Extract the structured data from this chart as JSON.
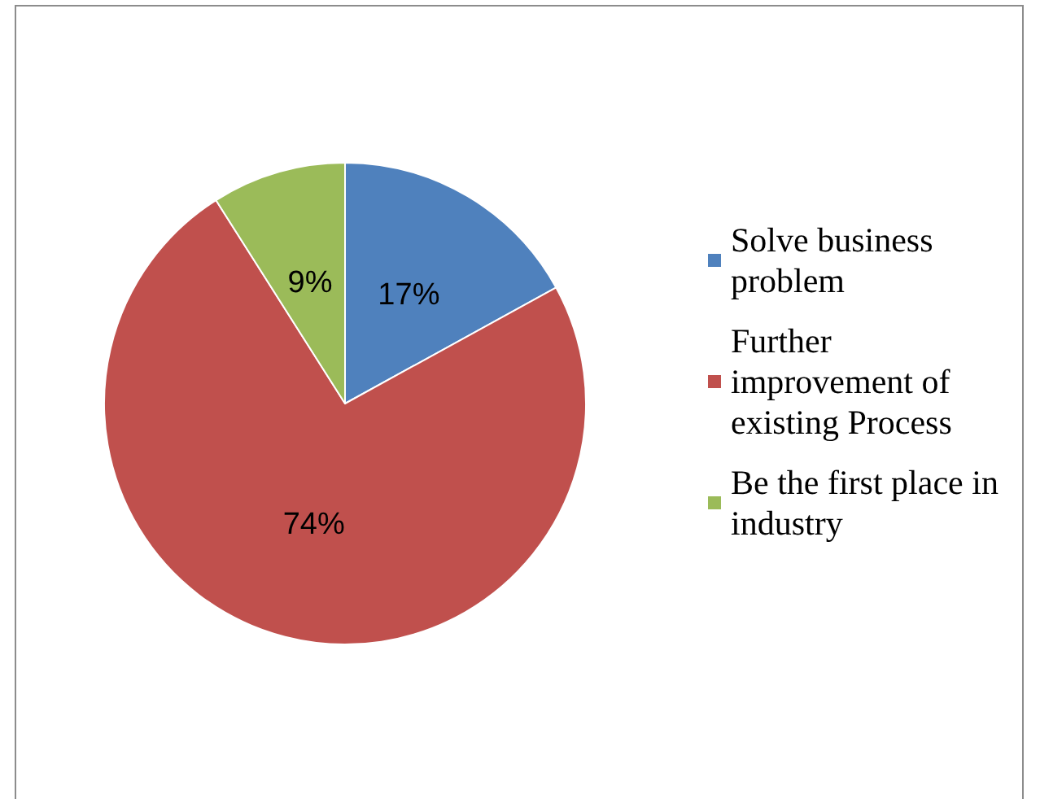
{
  "chart_data": {
    "type": "pie",
    "categories": [
      "Solve business problem",
      "Further improvement of existing Process",
      "Be the first place in industry"
    ],
    "values": [
      17,
      74,
      9
    ],
    "colors": [
      "#4f81bd",
      "#c0504d",
      "#9bbb59"
    ],
    "value_labels": [
      "17%",
      "74%",
      "9%"
    ],
    "legend": "right"
  }
}
